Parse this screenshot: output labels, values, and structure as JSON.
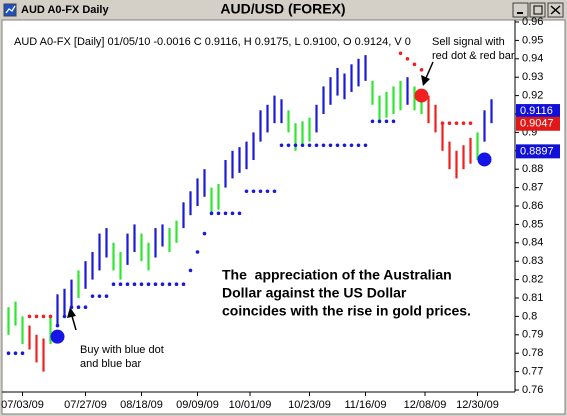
{
  "window": {
    "title": "AUD A0-FX Daily"
  },
  "chart_data": {
    "type": "ohlc",
    "title": "AUD/USD (FOREX)",
    "subtitle": "AUD A0-FX [Daily] 01/05/10 -0.0016 C 0.9116, H 0.9175, L 0.9100, O 0.9124, V 0",
    "xlim": [
      0,
      141
    ],
    "xticks": [
      {
        "value": 5,
        "label": "07/03/09"
      },
      {
        "value": 23,
        "label": "07/27/09"
      },
      {
        "value": 39,
        "label": "08/18/09"
      },
      {
        "value": 55,
        "label": "09/09/09"
      },
      {
        "value": 70,
        "label": "10/01/09"
      },
      {
        "value": 87,
        "label": "10/23/09"
      },
      {
        "value": 103,
        "label": "11/16/09"
      },
      {
        "value": 120,
        "label": "12/08/09"
      },
      {
        "value": 135,
        "label": "12/30/09"
      }
    ],
    "ylim": [
      0.76,
      0.96
    ],
    "yticks": [
      0.76,
      0.77,
      0.78,
      0.79,
      0.8,
      0.81,
      0.82,
      0.83,
      0.84,
      0.85,
      0.86,
      0.87,
      0.88,
      0.89,
      0.9,
      0.91,
      0.92,
      0.93,
      0.94,
      0.95,
      0.96
    ],
    "series": [
      {
        "color": "#2ee62e",
        "x": [
          1,
          3,
          5,
          13,
          21,
          31,
          33,
          39,
          41,
          47,
          49,
          59,
          61,
          81,
          83,
          85,
          87,
          105,
          107,
          109,
          111,
          113,
          117,
          119,
          135
        ],
        "low": [
          0.79,
          0.795,
          0.785,
          0.785,
          0.81,
          0.825,
          0.82,
          0.83,
          0.825,
          0.835,
          0.84,
          0.855,
          0.858,
          0.9,
          0.89,
          0.893,
          0.895,
          0.915,
          0.905,
          0.908,
          0.91,
          0.912,
          0.912,
          0.91,
          0.885
        ],
        "high": [
          0.805,
          0.808,
          0.8,
          0.8,
          0.825,
          0.84,
          0.835,
          0.845,
          0.84,
          0.848,
          0.852,
          0.87,
          0.872,
          0.912,
          0.905,
          0.906,
          0.908,
          0.928,
          0.92,
          0.922,
          0.925,
          0.928,
          0.925,
          0.922,
          0.9
        ]
      },
      {
        "color": "#ee2020",
        "x": [
          7,
          9,
          11,
          121,
          123,
          125,
          127,
          129,
          131,
          133
        ],
        "low": [
          0.782,
          0.775,
          0.77,
          0.905,
          0.9,
          0.89,
          0.88,
          0.875,
          0.88,
          0.883
        ],
        "high": [
          0.795,
          0.79,
          0.788,
          0.92,
          0.915,
          0.905,
          0.895,
          0.89,
          0.893,
          0.897
        ]
      },
      {
        "color": "#1a1ad8",
        "x": [
          15,
          17,
          19,
          23,
          25,
          27,
          29,
          35,
          37,
          43,
          45,
          51,
          53,
          55,
          57,
          63,
          65,
          67,
          69,
          71,
          73,
          75,
          77,
          79,
          89,
          91,
          93,
          95,
          97,
          99,
          101,
          103,
          115,
          137,
          139
        ],
        "low": [
          0.795,
          0.8,
          0.805,
          0.815,
          0.82,
          0.825,
          0.832,
          0.828,
          0.835,
          0.832,
          0.838,
          0.848,
          0.855,
          0.86,
          0.865,
          0.87,
          0.875,
          0.878,
          0.88,
          0.885,
          0.895,
          0.9,
          0.905,
          0.905,
          0.9,
          0.91,
          0.915,
          0.92,
          0.918,
          0.922,
          0.925,
          0.928,
          0.915,
          0.895,
          0.905
        ],
        "high": [
          0.812,
          0.815,
          0.82,
          0.83,
          0.835,
          0.845,
          0.848,
          0.845,
          0.85,
          0.848,
          0.85,
          0.862,
          0.868,
          0.875,
          0.88,
          0.885,
          0.89,
          0.892,
          0.895,
          0.9,
          0.912,
          0.915,
          0.92,
          0.918,
          0.915,
          0.925,
          0.93,
          0.935,
          0.932,
          0.937,
          0.94,
          0.942,
          0.93,
          0.912,
          0.918
        ]
      }
    ],
    "dots": [
      {
        "color": "#1a1ad8",
        "x": [
          1,
          3,
          5,
          15,
          17,
          19,
          21,
          23,
          25,
          27,
          29,
          31,
          33,
          35,
          37,
          39,
          41,
          43,
          45,
          47,
          49,
          51,
          53,
          55,
          57,
          59,
          61,
          63,
          65,
          67,
          69,
          71,
          73,
          75,
          77,
          79,
          81,
          83,
          85,
          87,
          89,
          91,
          93,
          95,
          97,
          99,
          101,
          103,
          105,
          107,
          109,
          111
        ],
        "values": [
          0.78,
          0.78,
          0.78,
          0.795,
          0.8,
          0.805,
          0.805,
          0.805,
          0.811,
          0.811,
          0.811,
          0.8175,
          0.8175,
          0.8175,
          0.8175,
          0.8175,
          0.8175,
          0.8175,
          0.8175,
          0.8175,
          0.8175,
          0.8175,
          0.825,
          0.835,
          0.845,
          0.856,
          0.856,
          0.856,
          0.856,
          0.856,
          0.868,
          0.868,
          0.868,
          0.868,
          0.868,
          0.893,
          0.893,
          0.893,
          0.893,
          0.893,
          0.893,
          0.893,
          0.893,
          0.893,
          0.893,
          0.893,
          0.893,
          0.893,
          0.906,
          0.906,
          0.906,
          0.906
        ]
      },
      {
        "color": "#ee2020",
        "x": [
          7,
          9,
          11,
          13,
          113,
          115,
          117,
          119,
          125,
          127,
          129,
          131,
          133
        ],
        "values": [
          0.8,
          0.8,
          0.8,
          0.8,
          0.943,
          0.94,
          0.937,
          0.934,
          0.905,
          0.905,
          0.905,
          0.905,
          0.905
        ]
      }
    ],
    "signals": [
      {
        "x": 15,
        "value": 0.789,
        "color": "#1515e8"
      },
      {
        "x": 119,
        "value": 0.92,
        "color": "#ee2020"
      },
      {
        "x": 137,
        "value": 0.8853,
        "color": "#1515e8"
      }
    ],
    "price_markers": [
      {
        "value": 0.9116,
        "color": "#1010d8"
      },
      {
        "value": 0.9047,
        "color": "#e01818"
      },
      {
        "value": 0.8897,
        "color": "#1010d8"
      }
    ],
    "annotations": [
      {
        "lines": [
          "Sell signal with",
          "red dot & red bar"
        ]
      },
      {
        "lines": [
          "Buy with blue dot",
          "and blue bar"
        ]
      },
      {
        "lines": [
          "The  appreciation of the Australian",
          "Dollar against the US Dollar",
          "coincides with the rise in gold prices."
        ]
      }
    ]
  }
}
